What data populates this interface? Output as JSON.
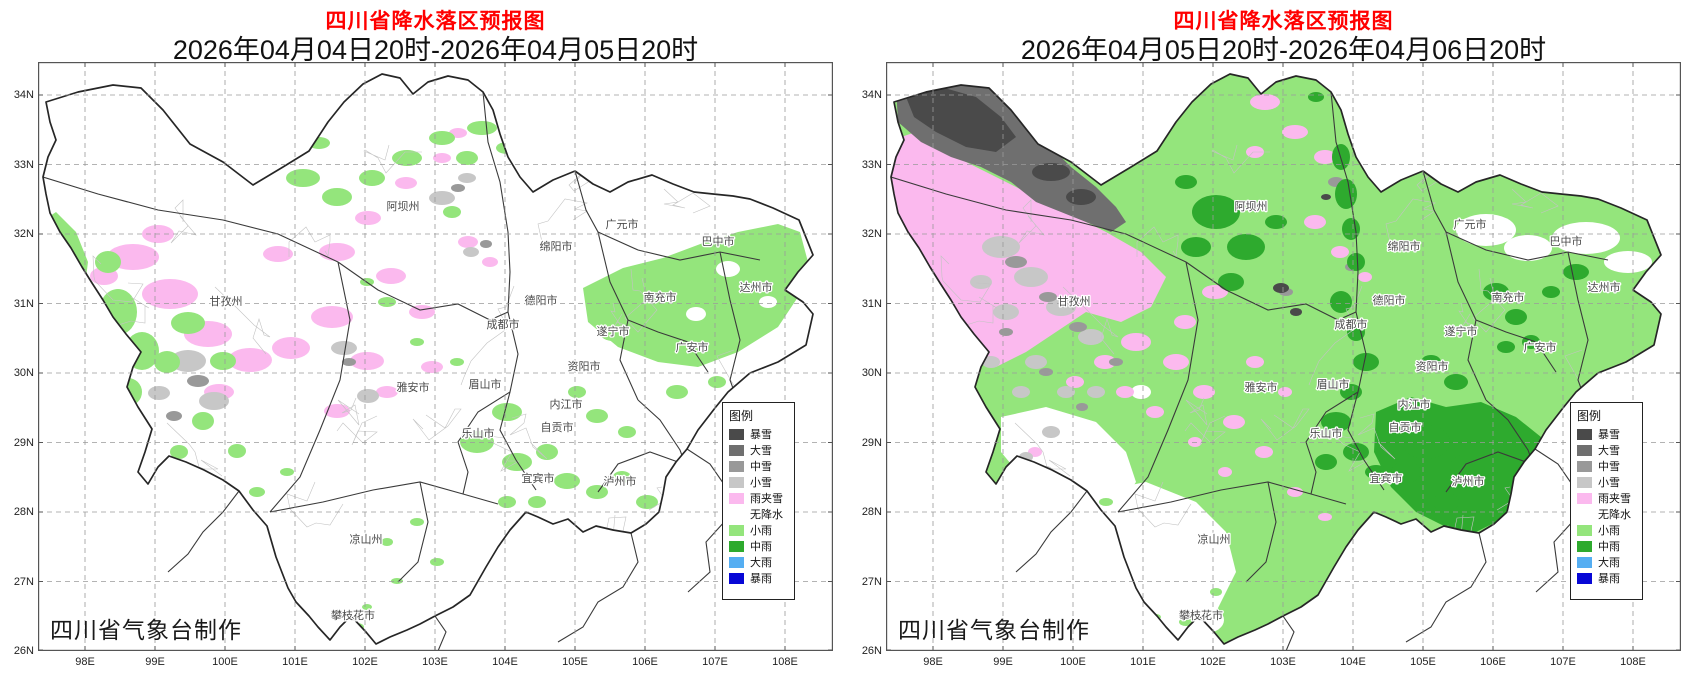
{
  "panels": [
    {
      "title": "四川省降水落区预报图",
      "subtitle": "2026年04月04日20时-2026年04月05日20时",
      "attribution": "四川省气象台制作"
    },
    {
      "title": "四川省降水落区预报图",
      "subtitle": "2026年04月05日20时-2026年04月06日20时",
      "attribution": "四川省气象台制作"
    }
  ],
  "title_color": "#ff0000",
  "legend": {
    "title": "图例",
    "items": [
      {
        "label": "暴雪",
        "color": "#4a4a4a"
      },
      {
        "label": "大雪",
        "color": "#6f6f6f"
      },
      {
        "label": "中雪",
        "color": "#999999"
      },
      {
        "label": "小雪",
        "color": "#c7c7c7"
      },
      {
        "label": "雨夹雪",
        "color": "#fbb9ee"
      },
      {
        "label": "无降水",
        "color": "#ffffff"
      },
      {
        "label": "小雨",
        "color": "#94e57c"
      },
      {
        "label": "中雨",
        "color": "#2eaa2e"
      },
      {
        "label": "大雨",
        "color": "#55aef2"
      },
      {
        "label": "暴雨",
        "color": "#0707d6"
      }
    ]
  },
  "axes": {
    "lat_labels": [
      "34N",
      "33N",
      "32N",
      "31N",
      "30N",
      "29N",
      "28N",
      "27N",
      "26N"
    ],
    "lon_labels": [
      "98E",
      "99E",
      "100E",
      "101E",
      "102E",
      "103E",
      "104E",
      "105E",
      "106E",
      "107E",
      "108E"
    ]
  },
  "cities": [
    "阿坝州",
    "广元市",
    "巴中市",
    "绵阳市",
    "甘孜州",
    "达州市",
    "南充市",
    "德阳市",
    "成都市",
    "遂宁市",
    "广安市",
    "资阳市",
    "雅安市",
    "眉山市",
    "内江市",
    "乐山市",
    "自贡市",
    "宜宾市",
    "泸州市",
    "凉山州",
    "攀枝花市"
  ]
}
